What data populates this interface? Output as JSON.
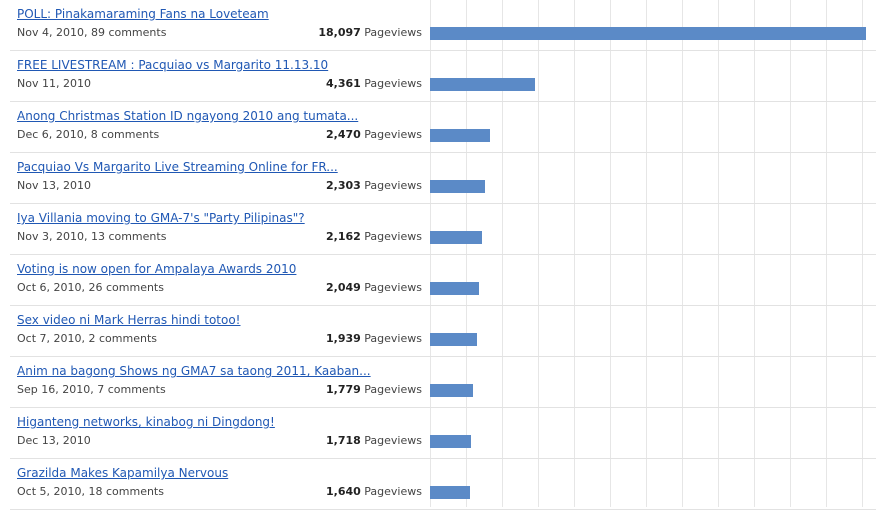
{
  "stats": {
    "pageviews_label": "Pageviews",
    "max_views": 18097,
    "posts": [
      {
        "title": "POLL: Pinakamaraming Fans na Loveteam",
        "meta": "Nov 4, 2010, 89 comments",
        "views_text": "18,097",
        "views": 18097
      },
      {
        "title": "FREE LIVESTREAM : Pacquiao vs Margarito 11.13.10",
        "meta": "Nov 11, 2010",
        "views_text": "4,361",
        "views": 4361
      },
      {
        "title": "Anong Christmas Station ID ngayong 2010 ang tumata...",
        "meta": "Dec 6, 2010, 8 comments",
        "views_text": "2,470",
        "views": 2470
      },
      {
        "title": "Pacquiao Vs Margarito Live Streaming Online for FR...",
        "meta": "Nov 13, 2010",
        "views_text": "2,303",
        "views": 2303
      },
      {
        "title": "Iya Villania moving to GMA-7's \"Party Pilipinas\"?",
        "meta": "Nov 3, 2010, 13 comments",
        "views_text": "2,162",
        "views": 2162
      },
      {
        "title": "Voting is now open for Ampalaya Awards 2010",
        "meta": "Oct 6, 2010, 26 comments",
        "views_text": "2,049",
        "views": 2049
      },
      {
        "title": "Sex video ni Mark Herras hindi totoo!",
        "meta": "Oct 7, 2010, 2 comments",
        "views_text": "1,939",
        "views": 1939
      },
      {
        "title": "Anim na bagong Shows ng GMA7 sa taong 2011, Kaaban...",
        "meta": "Sep 16, 2010, 7 comments",
        "views_text": "1,779",
        "views": 1779
      },
      {
        "title": "Higanteng networks, kinabog ni Dingdong!",
        "meta": "Dec 13, 2010",
        "views_text": "1,718",
        "views": 1718
      },
      {
        "title": "Grazilda Makes Kapamilya Nervous",
        "meta": "Oct 5, 2010, 18 comments",
        "views_text": "1,640",
        "views": 1640
      }
    ]
  }
}
